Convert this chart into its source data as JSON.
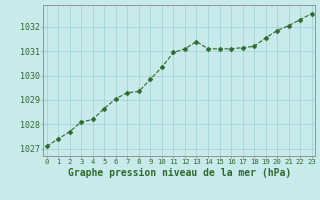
{
  "x": [
    0,
    1,
    2,
    3,
    4,
    5,
    6,
    7,
    8,
    9,
    10,
    11,
    12,
    13,
    14,
    15,
    16,
    17,
    18,
    19,
    20,
    21,
    22,
    23
  ],
  "y": [
    1027.1,
    1027.4,
    1027.7,
    1028.1,
    1028.2,
    1028.65,
    1029.05,
    1029.3,
    1029.35,
    1029.85,
    1030.35,
    1030.95,
    1031.1,
    1031.4,
    1031.1,
    1031.1,
    1031.1,
    1031.15,
    1031.2,
    1031.55,
    1031.85,
    1032.05,
    1032.3,
    1032.55
  ],
  "line_color": "#2d6a2d",
  "marker": "D",
  "marker_size": 2.5,
  "bg_color": "#c8eaea",
  "grid_color": "#9ecfcf",
  "ylabel_ticks": [
    1027,
    1028,
    1029,
    1030,
    1031,
    1032
  ],
  "xlabel_ticks": [
    0,
    1,
    2,
    3,
    4,
    5,
    6,
    7,
    8,
    9,
    10,
    11,
    12,
    13,
    14,
    15,
    16,
    17,
    18,
    19,
    20,
    21,
    22,
    23
  ],
  "xlabel": "Graphe pression niveau de la mer (hPa)",
  "ylim": [
    1026.7,
    1032.9
  ],
  "xlim": [
    -0.3,
    23.3
  ],
  "tick_color": "#2d6a2d",
  "xlabel_fontsize": 7.0,
  "ytick_fontsize": 6.0,
  "xtick_fontsize": 5.2
}
